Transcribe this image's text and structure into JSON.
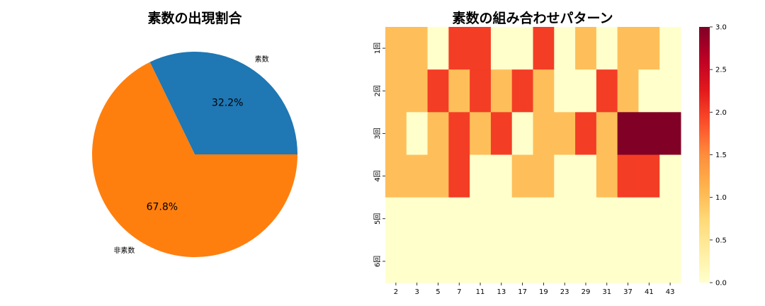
{
  "chart_data": [
    {
      "type": "pie",
      "title": "素数の出現割合",
      "labels": [
        "素数",
        "非素数"
      ],
      "values": [
        32.2,
        67.8
      ],
      "value_labels": [
        "32.2%",
        "67.8%"
      ],
      "colors": [
        "#1f77b4",
        "#ff7f0e"
      ]
    },
    {
      "type": "heatmap",
      "title": "素数の組み合わせパターン",
      "x_categories": [
        "2",
        "3",
        "5",
        "7",
        "11",
        "13",
        "17",
        "19",
        "23",
        "29",
        "31",
        "37",
        "41",
        "43"
      ],
      "y_categories": [
        "1回",
        "2回",
        "3回",
        "4回",
        "5回",
        "6回"
      ],
      "values": [
        [
          1,
          1,
          0,
          2,
          2,
          0,
          0,
          2,
          0,
          1,
          0,
          1,
          1,
          0
        ],
        [
          1,
          1,
          2,
          1,
          2,
          1,
          2,
          1,
          0,
          0,
          2,
          1,
          0,
          0
        ],
        [
          1,
          0,
          1,
          2,
          1,
          2,
          0,
          1,
          1,
          2,
          1,
          3,
          3,
          3
        ],
        [
          1,
          1,
          1,
          2,
          0,
          0,
          1,
          1,
          0,
          0,
          1,
          2,
          2,
          0
        ],
        [
          0,
          0,
          0,
          0,
          0,
          0,
          0,
          0,
          0,
          0,
          0,
          0,
          0,
          0
        ],
        [
          0,
          0,
          0,
          0,
          0,
          0,
          0,
          0,
          0,
          0,
          0,
          0,
          0,
          0
        ]
      ],
      "colorbar": {
        "min": 0,
        "max": 3,
        "ticks": [
          "0.0",
          "0.5",
          "1.0",
          "1.5",
          "2.0",
          "2.5",
          "3.0"
        ],
        "colormap": "YlOrRd"
      }
    }
  ]
}
